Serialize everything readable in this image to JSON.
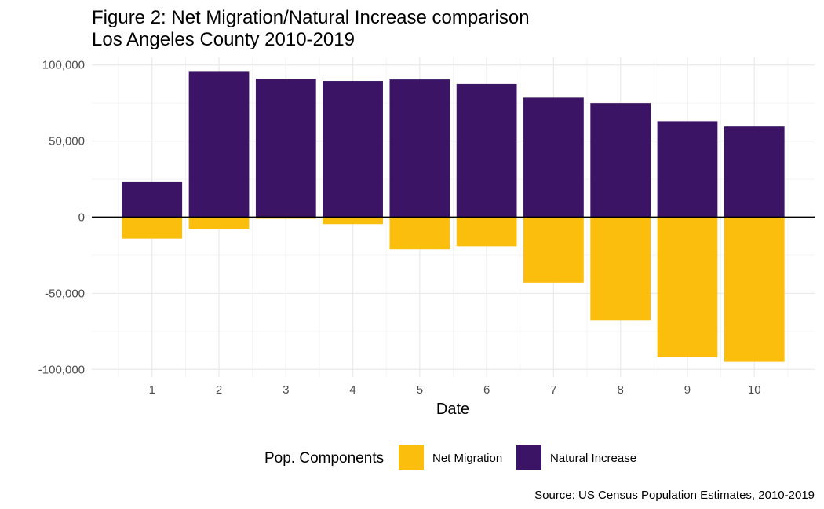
{
  "chart_data": {
    "type": "bar",
    "stacked": true,
    "title": "Figure 2: Net Migration/Natural Increase comparison",
    "subtitle": "Los Angeles County 2010-2019",
    "xlabel": "Date",
    "ylabel": "",
    "categories": [
      "1",
      "2",
      "3",
      "4",
      "5",
      "6",
      "7",
      "8",
      "9",
      "10"
    ],
    "ylim": [
      -105000,
      105000
    ],
    "yticks": [
      -100000,
      -50000,
      0,
      50000,
      100000
    ],
    "ytick_labels": [
      "-100,000",
      "-50,000",
      "0",
      "50,000",
      "100,000"
    ],
    "grid": true,
    "legend": {
      "title": "Pop. Components",
      "placement": "bottom",
      "entries": [
        "Net Migration",
        "Natural Increase"
      ]
    },
    "series": [
      {
        "name": "Net Migration",
        "color": "#FBBE0C",
        "values": [
          -14000,
          -8000,
          -1000,
          -4500,
          -21000,
          -19000,
          -43000,
          -68000,
          -92000,
          -95000
        ]
      },
      {
        "name": "Natural Increase",
        "color": "#3B1466",
        "values": [
          23000,
          95500,
          91000,
          89500,
          90500,
          87500,
          78500,
          75000,
          63000,
          59500
        ]
      }
    ],
    "caption": "Source: US Census Population Estimates, 2010-2019"
  }
}
